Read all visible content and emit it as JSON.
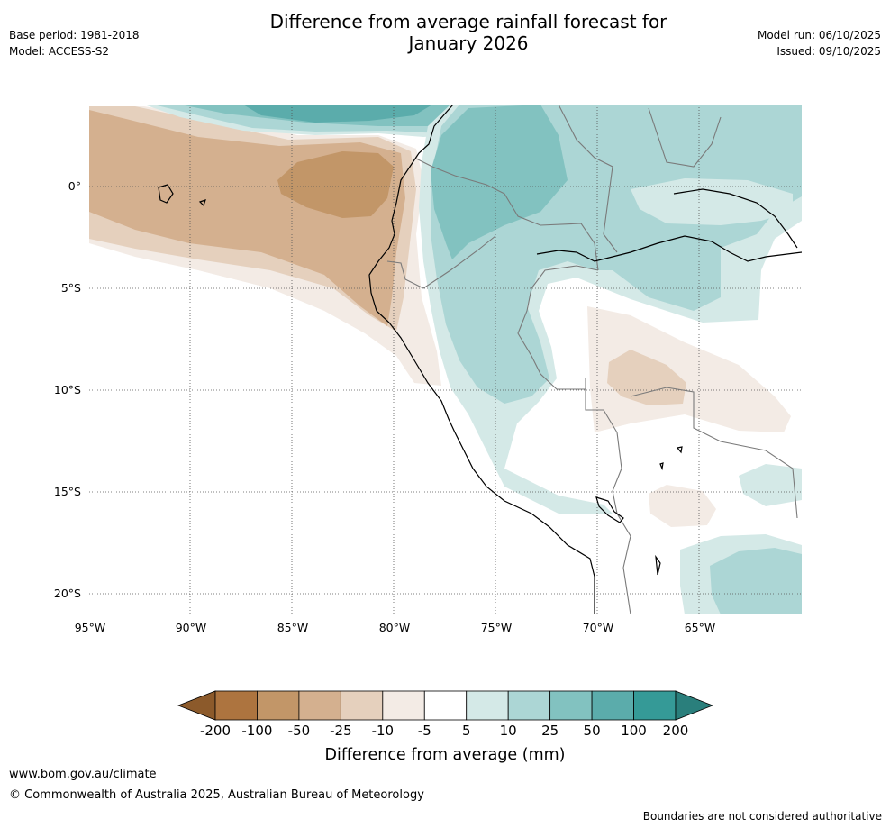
{
  "header": {
    "title_line1": "Difference from average rainfall forecast for",
    "title_line2": "January 2026",
    "base_period": "Base period: 1981-2018",
    "model": "Model: ACCESS-S2",
    "model_run": "Model run: 06/10/2025",
    "issued": "Issued: 09/10/2025"
  },
  "map": {
    "lat_labels": [
      "0°",
      "5°S",
      "10°S",
      "15°S",
      "20°S"
    ],
    "lon_labels": [
      "95°W",
      "90°W",
      "85°W",
      "80°W",
      "75°W",
      "70°W",
      "65°W"
    ]
  },
  "legend": {
    "title": "Difference from average (mm)",
    "ticks": [
      "-200",
      "-100",
      "-50",
      "-25",
      "-10",
      "-5",
      "5",
      "10",
      "25",
      "50",
      "100",
      "200"
    ],
    "colors": [
      "#8c5a2b",
      "#ad743f",
      "#c29668",
      "#d4b08f",
      "#e5d0bd",
      "#f3ebe5",
      "#ffffff",
      "#d4e9e7",
      "#acd6d5",
      "#82c2c0",
      "#5bacab",
      "#359a97",
      "#2a7f7c"
    ]
  },
  "footer": {
    "url": "www.bom.gov.au/climate",
    "copyright": "© Commonwealth of Australia 2025, Australian Bureau of Meteorology",
    "disclaimer": "Boundaries are not considered authoritative"
  }
}
